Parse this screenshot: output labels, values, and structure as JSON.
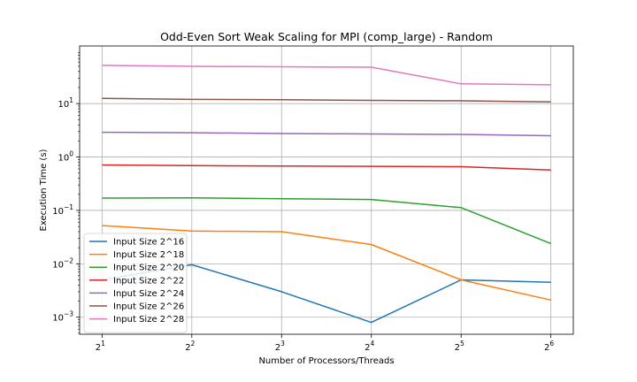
{
  "chart_data": {
    "type": "line",
    "title": "Odd-Even Sort Weak Scaling for MPI (comp_large) - Random",
    "xlabel": "Number of Processors/Threads",
    "ylabel": "Execution Time (s)",
    "yscale": "log",
    "xscale": "log2",
    "x": [
      2,
      4,
      8,
      16,
      32,
      64
    ],
    "x_tick_labels": [
      {
        "base": "2",
        "exp": "1"
      },
      {
        "base": "2",
        "exp": "2"
      },
      {
        "base": "2",
        "exp": "3"
      },
      {
        "base": "2",
        "exp": "4"
      },
      {
        "base": "2",
        "exp": "5"
      },
      {
        "base": "2",
        "exp": "6"
      }
    ],
    "y_ticks": [
      0.001,
      0.01,
      0.1,
      1,
      10
    ],
    "y_tick_labels": [
      {
        "base": "10",
        "exp": "−3"
      },
      {
        "base": "10",
        "exp": "−2"
      },
      {
        "base": "10",
        "exp": "−1"
      },
      {
        "base": "10",
        "exp": "0"
      },
      {
        "base": "10",
        "exp": "1"
      }
    ],
    "ylim": [
      0.00048,
      120
    ],
    "grid": true,
    "legend_position": "lower-left",
    "series": [
      {
        "name": "Input Size 2^16",
        "color": "#1f77b4",
        "values": [
          0.005,
          0.0096,
          0.003,
          0.0008,
          0.005,
          0.0045
        ]
      },
      {
        "name": "Input Size 2^18",
        "color": "#ff7f0e",
        "values": [
          0.052,
          0.041,
          0.04,
          0.023,
          0.005,
          0.0021
        ]
      },
      {
        "name": "Input Size 2^20",
        "color": "#2ca02c",
        "values": [
          0.17,
          0.172,
          0.165,
          0.16,
          0.113,
          0.024
        ]
      },
      {
        "name": "Input Size 2^22",
        "color": "#d62728",
        "values": [
          0.71,
          0.69,
          0.68,
          0.67,
          0.66,
          0.57
        ]
      },
      {
        "name": "Input Size 2^24",
        "color": "#9467bd",
        "values": [
          2.9,
          2.85,
          2.75,
          2.7,
          2.65,
          2.5
        ]
      },
      {
        "name": "Input Size 2^26",
        "color": "#8c564b",
        "values": [
          12.5,
          12.0,
          11.8,
          11.5,
          11.3,
          10.8
        ]
      },
      {
        "name": "Input Size 2^28",
        "color": "#e377c2",
        "values": [
          52,
          50,
          49,
          48,
          23.5,
          22.5
        ]
      }
    ]
  }
}
